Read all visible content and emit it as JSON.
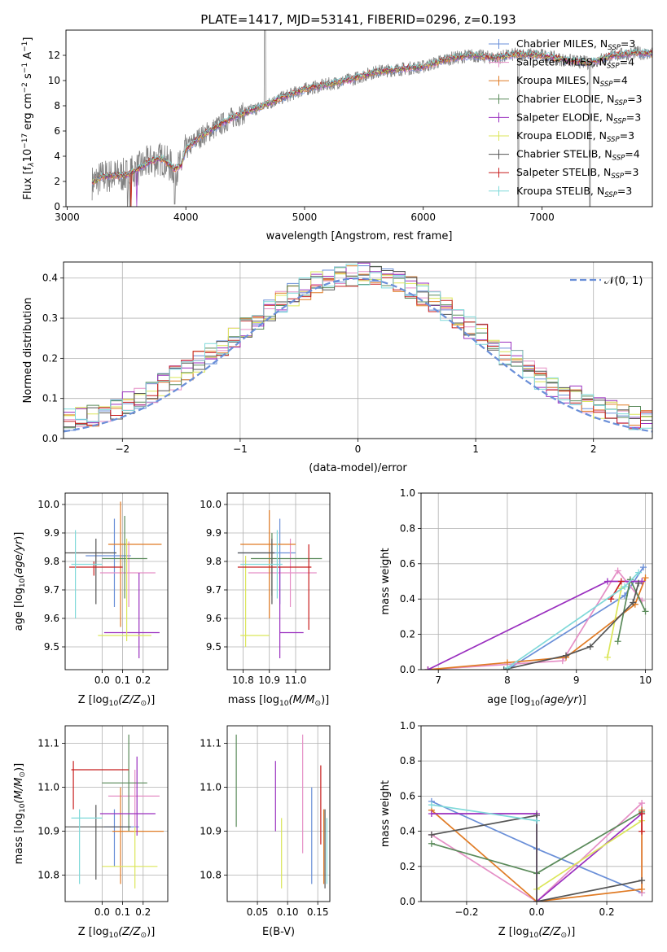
{
  "figure": {
    "title": "PLATE=1417, MJD=53141, FIBERID=0296, z=0.193"
  },
  "palette": {
    "Chabrier MILES": "#6a8fd8",
    "Salpeter MILES": "#e58fc6",
    "Kroupa MILES": "#e07b25",
    "Chabrier ELODIE": "#5a8a5a",
    "Salpeter ELODIE": "#9a2fbf",
    "Kroupa ELODIE": "#dbe659",
    "Chabrier STELIB": "#555555",
    "Salpeter STELIB": "#c81e1e",
    "Kroupa STELIB": "#7fd9d9",
    "data": "#808080",
    "normal": "#6a8fd8"
  },
  "chart_data": [
    {
      "id": "spectrum",
      "type": "line",
      "xlabel": "wavelength [Angstrom, rest frame]",
      "ylabel": "Flux [f_λ 10^-17 erg cm^-2 s^-1 A^-1]",
      "ylabel_parts": {
        "pre": "Flux [f",
        "sub1": "λ",
        "mid": "10",
        "sup1": "−17",
        "mid2": " erg cm",
        "sup2": "−2",
        "mid3": " s",
        "sup3": "−1",
        "mid4": " A",
        "sup4": "−1",
        "post": "]"
      },
      "xlim": [
        2990,
        7930
      ],
      "ylim": [
        0,
        14
      ],
      "xticks": [
        3000,
        4000,
        5000,
        6000,
        7000
      ],
      "yticks": [
        0,
        2,
        4,
        6,
        8,
        10,
        12
      ],
      "x_range_data": [
        3210,
        7930
      ],
      "legend": [
        {
          "name": "Chabrier MILES",
          "nssp": "3"
        },
        {
          "name": "Salpeter MILES",
          "nssp": "4"
        },
        {
          "name": "Kroupa MILES",
          "nssp": "4"
        },
        {
          "name": "Chabrier ELODIE",
          "nssp": "3"
        },
        {
          "name": "Salpeter ELODIE",
          "nssp": "3"
        },
        {
          "name": "Kroupa ELODIE",
          "nssp": "3"
        },
        {
          "name": "Chabrier STELIB",
          "nssp": "4"
        },
        {
          "name": "Salpeter STELIB",
          "nssp": "3"
        },
        {
          "name": "Kroupa STELIB",
          "nssp": "3"
        }
      ],
      "legend_prefix": "N",
      "legend_sub": "SSP",
      "legend_placement": "right",
      "continuum": [
        [
          3210,
          1.9
        ],
        [
          3300,
          2.4
        ],
        [
          3500,
          2.5
        ],
        [
          3600,
          3.0
        ],
        [
          3700,
          3.6
        ],
        [
          3800,
          3.8
        ],
        [
          3900,
          3.0
        ],
        [
          3960,
          3.2
        ],
        [
          4000,
          4.5
        ],
        [
          4100,
          5.4
        ],
        [
          4200,
          6.0
        ],
        [
          4400,
          7.1
        ],
        [
          4600,
          7.8
        ],
        [
          4800,
          8.6
        ],
        [
          5000,
          9.3
        ],
        [
          5200,
          9.7
        ],
        [
          5400,
          10.1
        ],
        [
          5600,
          10.7
        ],
        [
          5800,
          10.9
        ],
        [
          6000,
          11.1
        ],
        [
          6200,
          11.7
        ],
        [
          6400,
          12.0
        ],
        [
          6600,
          11.8
        ],
        [
          6800,
          12.1
        ],
        [
          7000,
          12.0
        ],
        [
          7200,
          11.6
        ],
        [
          7400,
          11.4
        ],
        [
          7600,
          12.0
        ],
        [
          7800,
          12.2
        ],
        [
          7930,
          12.1
        ]
      ],
      "notes": "gray observed spectrum with model fits overlaid"
    },
    {
      "id": "residuals",
      "type": "bar",
      "xlabel": "(data-model)/error",
      "ylabel": "Normed distribution",
      "xlim": [
        -2.5,
        2.5
      ],
      "ylim": [
        0,
        0.44
      ],
      "xticks": [
        -2,
        -1,
        0,
        1,
        2
      ],
      "yticks": [
        0,
        0.1,
        0.2,
        0.3,
        0.4
      ],
      "grid": true,
      "legend_label": "𝒩(0, 1)",
      "legend_placement": "top-right",
      "bin_width": 0.1
    },
    {
      "id": "age_vs_Z",
      "type": "scatter",
      "xlabel": "Z [log10(Z/Z⊙)]",
      "ylabel": "age [log10(age/yr)]",
      "xlim": [
        -0.18,
        0.32
      ],
      "ylim": [
        9.42,
        10.04
      ],
      "xticks": [
        0.0,
        0.1,
        0.2
      ],
      "yticks": [
        9.5,
        9.6,
        9.7,
        9.8,
        9.9,
        10.0
      ],
      "grid": true,
      "points": [
        {
          "model": "Chabrier MILES",
          "x": 0.06,
          "xerr": [
            0.14,
            0.08
          ],
          "y": 9.82,
          "yerr": [
            0.18,
            0.13
          ]
        },
        {
          "model": "Salpeter MILES",
          "x": 0.13,
          "xerr": [
            0.14,
            0.13
          ],
          "y": 9.76,
          "yerr": [
            0.12,
            0.11
          ]
        },
        {
          "model": "Kroupa MILES",
          "x": 0.09,
          "xerr": [
            0.06,
            0.2
          ],
          "y": 9.86,
          "yerr": [
            0.29,
            0.15
          ]
        },
        {
          "model": "Chabrier ELODIE",
          "x": 0.11,
          "xerr": [
            0.11,
            0.11
          ],
          "y": 9.81,
          "yerr": [
            0.14,
            0.15
          ]
        },
        {
          "model": "Salpeter ELODIE",
          "x": 0.18,
          "xerr": [
            0.17,
            0.1
          ],
          "y": 9.55,
          "yerr": [
            0.09,
            0.21
          ]
        },
        {
          "model": "Kroupa ELODIE",
          "x": 0.12,
          "xerr": [
            0.14,
            0.12
          ],
          "y": 9.54,
          "yerr": [
            0.02,
            0.34
          ]
        },
        {
          "model": "Chabrier STELIB",
          "x": -0.03,
          "xerr": [
            0.15,
            0.1
          ],
          "y": 9.83,
          "yerr": [
            0.18,
            0.05
          ]
        },
        {
          "model": "Salpeter STELIB",
          "x": -0.04,
          "xerr": [
            0.12,
            0.14
          ],
          "y": 9.78,
          "yerr": [
            0.03,
            0.02
          ]
        },
        {
          "model": "Kroupa STELIB",
          "x": -0.13,
          "xerr": [
            0.02,
            0.13
          ],
          "y": 9.79,
          "yerr": [
            0.19,
            0.12
          ]
        }
      ]
    },
    {
      "id": "age_vs_mass",
      "type": "scatter",
      "xlabel": "mass [log10(M/M⊙)]",
      "xlim": [
        10.74,
        11.13
      ],
      "ylim": [
        9.42,
        10.04
      ],
      "xticks": [
        10.8,
        10.9,
        11.0
      ],
      "yticks": [
        9.5,
        9.6,
        9.7,
        9.8,
        9.9,
        10.0
      ],
      "grid": true,
      "points": [
        {
          "model": "Chabrier MILES",
          "x": 10.94,
          "xerr": [
            0.16,
            0.06
          ],
          "y": 9.83,
          "yerr": [
            0.18,
            0.12
          ]
        },
        {
          "model": "Salpeter MILES",
          "x": 10.98,
          "xerr": [
            0.16,
            0.1
          ],
          "y": 9.76,
          "yerr": [
            0.12,
            0.12
          ]
        },
        {
          "model": "Kroupa MILES",
          "x": 10.9,
          "xerr": [
            0.11,
            0.1
          ],
          "y": 9.86,
          "yerr": [
            0.26,
            0.12
          ]
        },
        {
          "model": "Chabrier ELODIE",
          "x": 10.91,
          "xerr": [
            0.08,
            0.19
          ],
          "y": 9.81,
          "yerr": [
            0.13,
            0.09
          ]
        },
        {
          "model": "Salpeter ELODIE",
          "x": 10.94,
          "xerr": [
            0.0,
            0.09
          ],
          "y": 9.55,
          "yerr": [
            0.09,
            0.23
          ]
        },
        {
          "model": "Kroupa ELODIE",
          "x": 10.81,
          "xerr": [
            0.02,
            0.09
          ],
          "y": 9.54,
          "yerr": [
            0.04,
            0.28
          ]
        },
        {
          "model": "Chabrier STELIB",
          "x": 10.91,
          "xerr": [
            0.13,
            0.01
          ],
          "y": 9.83,
          "yerr": [
            0.18,
            0.05
          ]
        },
        {
          "model": "Salpeter STELIB",
          "x": 11.05,
          "xerr": [
            0.27,
            0.01
          ],
          "y": 9.78,
          "yerr": [
            0.22,
            0.08
          ]
        },
        {
          "model": "Kroupa STELIB",
          "x": 10.93,
          "xerr": [
            0.14,
            0.02
          ],
          "y": 9.79,
          "yerr": [
            0.12,
            0.12
          ]
        }
      ]
    },
    {
      "id": "massweight_vs_age",
      "type": "line",
      "xlabel": "age [log10(age/yr)]",
      "ylabel": "mass weight",
      "xlim": [
        6.75,
        10.1
      ],
      "ylim": [
        0,
        1.0
      ],
      "xticks": [
        7,
        8,
        9,
        10
      ],
      "yticks": [
        0.0,
        0.2,
        0.4,
        0.6,
        0.8,
        1.0
      ],
      "grid": true,
      "series": [
        {
          "model": "Chabrier MILES",
          "x": [
            8.0,
            9.7,
            9.97
          ],
          "y": [
            0.0,
            0.42,
            0.58
          ]
        },
        {
          "model": "Salpeter MILES",
          "x": [
            6.85,
            8.0,
            8.8,
            9.6,
            9.95
          ],
          "y": [
            0.0,
            0.03,
            0.05,
            0.56,
            0.39
          ]
        },
        {
          "model": "Kroupa MILES",
          "x": [
            6.85,
            8.0,
            8.85,
            9.85,
            10.0
          ],
          "y": [
            0.0,
            0.04,
            0.07,
            0.37,
            0.52
          ]
        },
        {
          "model": "Chabrier ELODIE",
          "x": [
            9.6,
            9.78,
            10.0
          ],
          "y": [
            0.16,
            0.51,
            0.33
          ]
        },
        {
          "model": "Salpeter ELODIE",
          "x": [
            6.85,
            9.45,
            9.95
          ],
          "y": [
            0.0,
            0.5,
            0.5
          ]
        },
        {
          "model": "Kroupa ELODIE",
          "x": [
            9.45,
            9.65
          ],
          "y": [
            0.07,
            0.46
          ]
        },
        {
          "model": "Chabrier STELIB",
          "x": [
            7.95,
            8.85,
            9.2,
            9.82,
            9.9
          ],
          "y": [
            0.0,
            0.08,
            0.13,
            0.38,
            0.49
          ]
        },
        {
          "model": "Salpeter STELIB",
          "x": [
            9.5,
            9.65
          ],
          "y": [
            0.4,
            0.5
          ]
        },
        {
          "model": "Kroupa STELIB",
          "x": [
            8.0,
            9.7,
            9.9
          ],
          "y": [
            0.01,
            0.47,
            0.55
          ]
        }
      ]
    },
    {
      "id": "mass_vs_Z",
      "type": "scatter",
      "xlabel": "Z [log10(Z/Z⊙)]",
      "ylabel": "mass [log10(M/M⊙)]",
      "xlim": [
        -0.18,
        0.32
      ],
      "ylim": [
        10.74,
        11.14
      ],
      "xticks": [
        0.0,
        0.1,
        0.2
      ],
      "yticks": [
        10.8,
        10.9,
        11.0,
        11.1
      ],
      "grid": true,
      "points": [
        {
          "model": "Chabrier MILES",
          "x": 0.06,
          "xerr": [
            0.05,
            0.12
          ],
          "y": 10.91,
          "yerr": [
            0.09,
            0.04
          ]
        },
        {
          "model": "Salpeter MILES",
          "x": 0.16,
          "xerr": [
            0.13,
            0.12
          ],
          "y": 10.98,
          "yerr": [
            0.07,
            0.06
          ]
        },
        {
          "model": "Kroupa MILES",
          "x": 0.09,
          "xerr": [
            0.04,
            0.21
          ],
          "y": 10.9,
          "yerr": [
            0.12,
            0.1
          ]
        },
        {
          "model": "Chabrier ELODIE",
          "x": 0.13,
          "xerr": [
            0.13,
            0.09
          ],
          "y": 11.01,
          "yerr": [
            0.11,
            0.11
          ]
        },
        {
          "model": "Salpeter ELODIE",
          "x": 0.17,
          "xerr": [
            0.18,
            0.09
          ],
          "y": 10.94,
          "yerr": [
            0.05,
            0.13
          ]
        },
        {
          "model": "Kroupa ELODIE",
          "x": 0.16,
          "xerr": [
            0.16,
            0.11
          ],
          "y": 10.82,
          "yerr": [
            0.05,
            0.09
          ]
        },
        {
          "model": "Chabrier STELIB",
          "x": -0.03,
          "xerr": [
            0.15,
            0.17
          ],
          "y": 10.91,
          "yerr": [
            0.12,
            0.05
          ]
        },
        {
          "model": "Salpeter STELIB",
          "x": -0.14,
          "xerr": [
            0.01,
            0.27
          ],
          "y": 11.04,
          "yerr": [
            0.09,
            0.02
          ]
        },
        {
          "model": "Kroupa STELIB",
          "x": -0.11,
          "xerr": [
            0.04,
            0.11
          ],
          "y": 10.93,
          "yerr": [
            0.15,
            0.02
          ]
        }
      ]
    },
    {
      "id": "mass_vs_ebv",
      "type": "scatter",
      "xlabel": "E(B-V)",
      "xlim": [
        0.0,
        0.17
      ],
      "ylim": [
        10.74,
        11.14
      ],
      "xticks": [
        0.05,
        0.1,
        0.15
      ],
      "yticks": [
        10.8,
        10.9,
        11.0,
        11.1
      ],
      "grid": true,
      "points": [
        {
          "model": "Chabrier MILES",
          "x": 0.14,
          "y": 10.9,
          "yerr": [
            0.12,
            0.1
          ]
        },
        {
          "model": "Salpeter MILES",
          "x": 0.125,
          "y": 10.98,
          "yerr": [
            0.13,
            0.14
          ]
        },
        {
          "model": "Kroupa MILES",
          "x": 0.16,
          "y": 10.9,
          "yerr": [
            0.12,
            0.05
          ]
        },
        {
          "model": "Chabrier ELODIE",
          "x": 0.015,
          "y": 11.01,
          "yerr": [
            0.1,
            0.11
          ]
        },
        {
          "model": "Salpeter ELODIE",
          "x": 0.08,
          "y": 10.95,
          "yerr": [
            0.05,
            0.11
          ]
        },
        {
          "model": "Kroupa ELODIE",
          "x": 0.09,
          "y": 10.84,
          "yerr": [
            0.07,
            0.09
          ]
        },
        {
          "model": "Chabrier STELIB",
          "x": 0.162,
          "y": 10.88,
          "yerr": [
            0.11,
            0.07
          ]
        },
        {
          "model": "Salpeter STELIB",
          "x": 0.155,
          "y": 10.96,
          "yerr": [
            0.09,
            0.09
          ]
        },
        {
          "model": "Kroupa STELIB",
          "x": 0.165,
          "y": 10.85,
          "yerr": [
            0.07,
            0.08
          ]
        }
      ]
    },
    {
      "id": "massweight_vs_Z",
      "type": "line",
      "xlabel": "Z [log10(Z/Z⊙)]",
      "ylabel": "mass weight",
      "xlim": [
        -0.33,
        0.33
      ],
      "ylim": [
        0,
        1.0
      ],
      "xticks": [
        -0.2,
        0.0,
        0.2
      ],
      "yticks": [
        0.0,
        0.2,
        0.4,
        0.6,
        0.8,
        1.0
      ],
      "grid": true,
      "series": [
        {
          "model": "Chabrier MILES",
          "x": [
            -0.3,
            0.0,
            0.3
          ],
          "y": [
            0.57,
            0.3,
            0.05
          ]
        },
        {
          "model": "Salpeter MILES",
          "x": [
            -0.3,
            0.0,
            0.3,
            0.3
          ],
          "y": [
            0.38,
            0.0,
            0.56,
            0.05
          ]
        },
        {
          "model": "Kroupa MILES",
          "x": [
            -0.3,
            0.0,
            0.3,
            0.3
          ],
          "y": [
            0.52,
            0.0,
            0.07,
            0.52
          ]
        },
        {
          "model": "Chabrier ELODIE",
          "x": [
            -0.3,
            0.0,
            0.3
          ],
          "y": [
            0.33,
            0.16,
            0.51
          ]
        },
        {
          "model": "Salpeter ELODIE",
          "x": [
            -0.3,
            0.0,
            0.0,
            0.3
          ],
          "y": [
            0.5,
            0.5,
            0.0,
            0.5
          ]
        },
        {
          "model": "Kroupa ELODIE",
          "x": [
            0.0,
            0.3
          ],
          "y": [
            0.07,
            0.46
          ]
        },
        {
          "model": "Chabrier STELIB",
          "x": [
            -0.3,
            0.0,
            0.0,
            0.3
          ],
          "y": [
            0.38,
            0.49,
            0.0,
            0.12
          ]
        },
        {
          "model": "Salpeter STELIB",
          "x": [
            0.3,
            0.3
          ],
          "y": [
            0.4,
            0.5
          ]
        },
        {
          "model": "Kroupa STELIB",
          "x": [
            -0.3,
            0.0
          ],
          "y": [
            0.55,
            0.46
          ]
        }
      ]
    }
  ]
}
